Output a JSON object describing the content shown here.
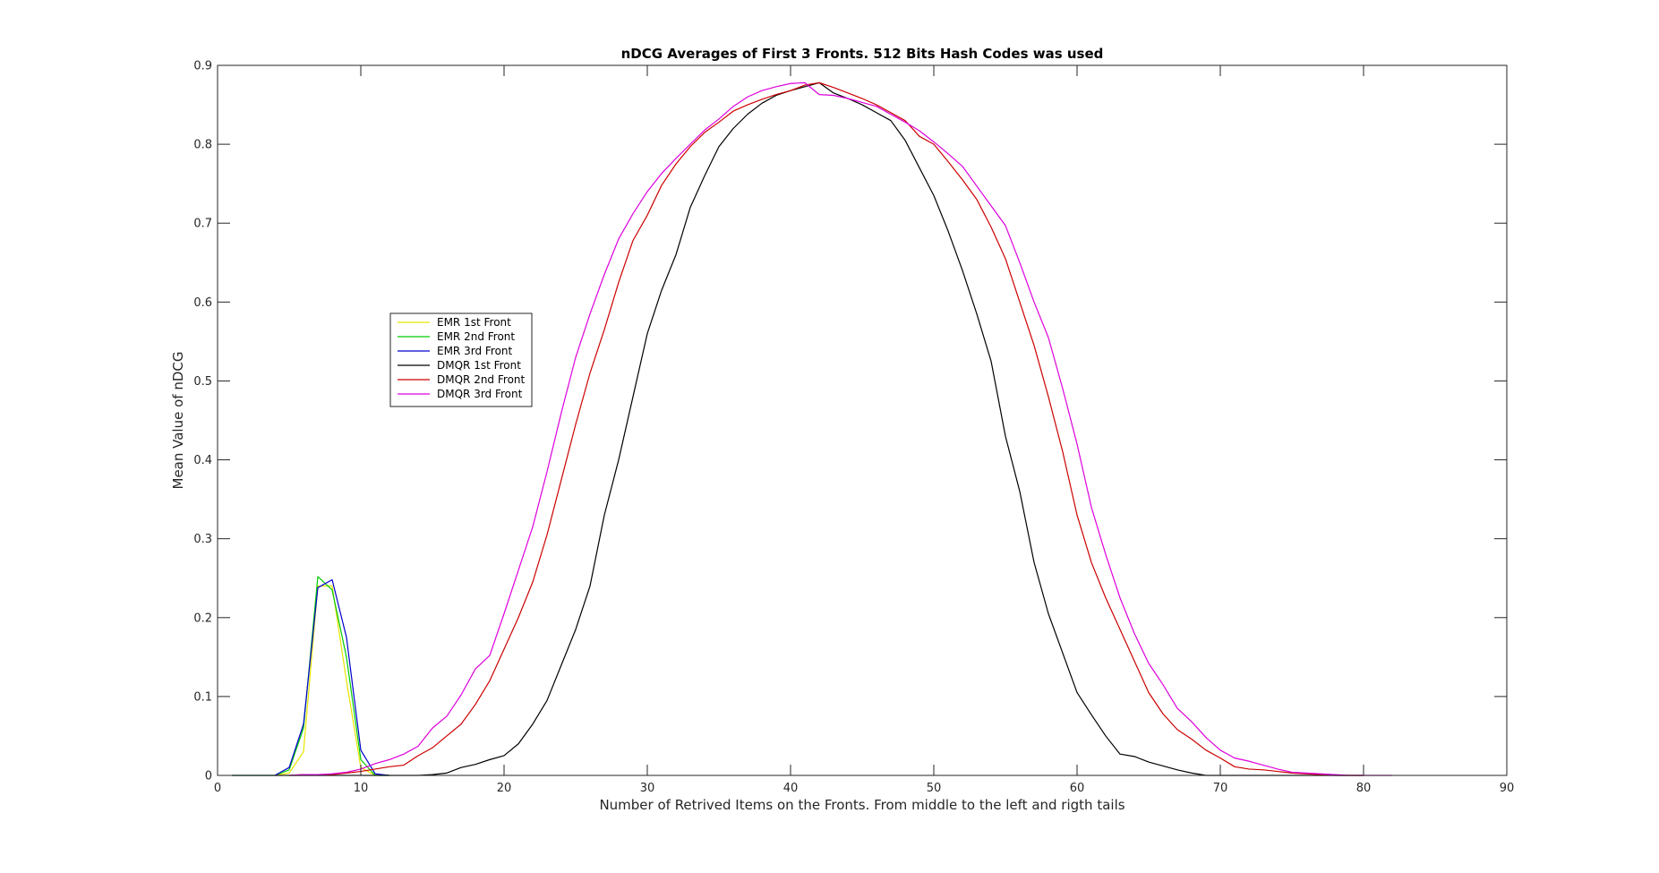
{
  "chart_data": {
    "type": "line",
    "title": "nDCG Averages of First 3 Fronts. 512 Bits Hash Codes was used",
    "xlabel": "Number of Retrived Items on the Fronts. From middle to the left and rigth tails",
    "ylabel": "Mean Value of nDCG",
    "xlim": [
      0,
      90
    ],
    "ylim": [
      0,
      0.9
    ],
    "xticks": [
      0,
      10,
      20,
      30,
      40,
      50,
      60,
      70,
      80,
      90
    ],
    "yticks": [
      0,
      0.1,
      0.2,
      0.3,
      0.4,
      0.5,
      0.6,
      0.7,
      0.8,
      0.9
    ],
    "xtick_labels": [
      "0",
      "10",
      "20",
      "30",
      "40",
      "50",
      "60",
      "70",
      "80",
      "90"
    ],
    "ytick_labels": [
      "0",
      "0.1",
      "0.2",
      "0.3",
      "0.4",
      "0.5",
      "0.6",
      "0.7",
      "0.8",
      "0.9"
    ],
    "grid": false,
    "legend_position": "middle-left",
    "series": [
      {
        "name": "EMR 1st Front",
        "color": "#e5e500",
        "x": [
          1,
          2,
          3,
          4,
          5,
          6,
          7,
          8,
          9,
          10,
          11,
          12
        ],
        "y": [
          0,
          0,
          0,
          0,
          0.003,
          0.03,
          0.24,
          0.24,
          0.12,
          0.01,
          0,
          0
        ]
      },
      {
        "name": "EMR 2nd Front",
        "color": "#00cc00",
        "x": [
          1,
          2,
          3,
          4,
          5,
          6,
          7,
          8,
          9,
          10,
          11,
          12
        ],
        "y": [
          0,
          0,
          0,
          0,
          0.007,
          0.06,
          0.252,
          0.235,
          0.15,
          0.02,
          0,
          0
        ]
      },
      {
        "name": "EMR 3rd Front",
        "color": "#0000cc",
        "x": [
          1,
          2,
          3,
          4,
          5,
          6,
          7,
          8,
          9,
          10,
          11,
          12
        ],
        "y": [
          0,
          0,
          0,
          0,
          0.01,
          0.065,
          0.238,
          0.248,
          0.175,
          0.032,
          0.002,
          0
        ]
      },
      {
        "name": "DMQR 1st Front",
        "color": "#000000",
        "x": [
          4,
          5,
          6,
          7,
          8,
          9,
          10,
          11,
          12,
          13,
          14,
          15,
          16,
          17,
          18,
          19,
          20,
          21,
          22,
          23,
          24,
          25,
          26,
          27,
          28,
          29,
          30,
          31,
          32,
          33,
          34,
          35,
          36,
          37,
          38,
          39,
          40,
          41,
          42,
          43,
          44,
          45,
          46,
          47,
          48,
          49,
          50,
          51,
          52,
          53,
          54,
          55,
          56,
          57,
          58,
          59,
          60,
          61,
          62,
          63,
          64,
          65,
          66,
          67,
          68,
          69,
          70,
          80
        ],
        "y": [
          0,
          0,
          0,
          0,
          0,
          0,
          0,
          0,
          0,
          0,
          0,
          0.001,
          0.003,
          0.01,
          0.014,
          0.02,
          0.025,
          0.04,
          0.065,
          0.095,
          0.14,
          0.185,
          0.24,
          0.33,
          0.4,
          0.48,
          0.56,
          0.615,
          0.66,
          0.72,
          0.76,
          0.797,
          0.82,
          0.838,
          0.852,
          0.862,
          0.868,
          0.873,
          0.878,
          0.865,
          0.858,
          0.85,
          0.84,
          0.83,
          0.805,
          0.77,
          0.735,
          0.69,
          0.64,
          0.585,
          0.525,
          0.43,
          0.36,
          0.27,
          0.205,
          0.155,
          0.105,
          0.077,
          0.05,
          0.027,
          0.024,
          0.017,
          0.012,
          0.007,
          0.003,
          0,
          0,
          0
        ]
      },
      {
        "name": "DMQR 2nd Front",
        "color": "#cc0000",
        "x": [
          5,
          6,
          7,
          8,
          9,
          10,
          11,
          12,
          13,
          14,
          15,
          16,
          17,
          18,
          19,
          20,
          21,
          22,
          23,
          24,
          25,
          26,
          27,
          28,
          29,
          30,
          31,
          32,
          33,
          34,
          35,
          36,
          37,
          38,
          39,
          40,
          41,
          42,
          43,
          44,
          45,
          46,
          47,
          48,
          49,
          50,
          51,
          52,
          53,
          54,
          55,
          56,
          57,
          58,
          59,
          60,
          61,
          62,
          63,
          64,
          65,
          66,
          67,
          68,
          69,
          70,
          71,
          72,
          73,
          74,
          75,
          76,
          77,
          78,
          79,
          80
        ],
        "y": [
          0,
          0.001,
          0.001,
          0.001,
          0.003,
          0.005,
          0.008,
          0.011,
          0.013,
          0.025,
          0.035,
          0.05,
          0.065,
          0.09,
          0.12,
          0.16,
          0.2,
          0.245,
          0.305,
          0.375,
          0.445,
          0.51,
          0.565,
          0.625,
          0.678,
          0.71,
          0.748,
          0.775,
          0.797,
          0.815,
          0.828,
          0.842,
          0.85,
          0.857,
          0.863,
          0.868,
          0.875,
          0.878,
          0.872,
          0.865,
          0.858,
          0.85,
          0.84,
          0.83,
          0.81,
          0.8,
          0.778,
          0.755,
          0.73,
          0.695,
          0.655,
          0.6,
          0.545,
          0.48,
          0.41,
          0.33,
          0.27,
          0.225,
          0.185,
          0.145,
          0.105,
          0.078,
          0.058,
          0.046,
          0.032,
          0.022,
          0.011,
          0.008,
          0.007,
          0.005,
          0.003,
          0.002,
          0.001,
          0,
          0,
          0
        ]
      },
      {
        "name": "DMQR 3rd Front",
        "color": "#dd00dd",
        "x": [
          5,
          6,
          7,
          8,
          9,
          10,
          11,
          12,
          13,
          14,
          15,
          16,
          17,
          18,
          19,
          20,
          21,
          22,
          23,
          24,
          25,
          26,
          27,
          28,
          29,
          30,
          31,
          32,
          33,
          34,
          35,
          36,
          37,
          38,
          39,
          40,
          41,
          42,
          43,
          44,
          45,
          46,
          47,
          48,
          49,
          50,
          51,
          52,
          53,
          54,
          55,
          56,
          57,
          58,
          59,
          60,
          61,
          62,
          63,
          64,
          65,
          66,
          67,
          68,
          69,
          70,
          71,
          72,
          73,
          74,
          75,
          76,
          77,
          78,
          79,
          80,
          81,
          82
        ],
        "y": [
          0,
          0.001,
          0.001,
          0.002,
          0.004,
          0.008,
          0.015,
          0.02,
          0.027,
          0.037,
          0.06,
          0.075,
          0.102,
          0.135,
          0.152,
          0.205,
          0.26,
          0.315,
          0.385,
          0.46,
          0.53,
          0.585,
          0.635,
          0.68,
          0.712,
          0.74,
          0.763,
          0.782,
          0.8,
          0.818,
          0.832,
          0.848,
          0.86,
          0.868,
          0.873,
          0.877,
          0.878,
          0.863,
          0.862,
          0.858,
          0.853,
          0.848,
          0.838,
          0.828,
          0.817,
          0.803,
          0.788,
          0.772,
          0.747,
          0.722,
          0.697,
          0.65,
          0.6,
          0.555,
          0.49,
          0.42,
          0.34,
          0.28,
          0.225,
          0.18,
          0.142,
          0.115,
          0.085,
          0.068,
          0.048,
          0.032,
          0.022,
          0.018,
          0.013,
          0.008,
          0.004,
          0.003,
          0.002,
          0.001,
          0,
          0,
          0,
          0
        ]
      }
    ]
  }
}
